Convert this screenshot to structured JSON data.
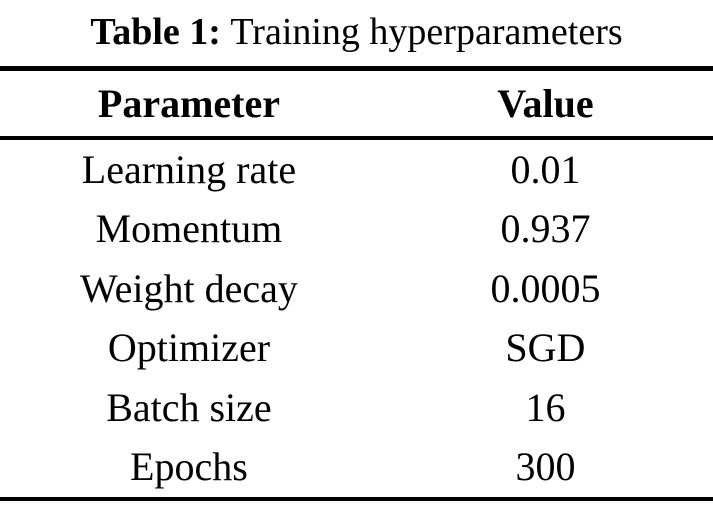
{
  "caption": {
    "label": "Table 1:",
    "text": "Training hyperparameters"
  },
  "table": {
    "columns": [
      "Parameter",
      "Value"
    ],
    "rows": [
      {
        "parameter": "Learning rate",
        "value": "0.01"
      },
      {
        "parameter": "Momentum",
        "value": "0.937"
      },
      {
        "parameter": "Weight decay",
        "value": "0.0005"
      },
      {
        "parameter": "Optimizer",
        "value": "SGD"
      },
      {
        "parameter": "Batch size",
        "value": "16"
      },
      {
        "parameter": "Epochs",
        "value": "300"
      }
    ]
  },
  "colors": {
    "text": "#000000",
    "background": "#ffffff",
    "rule": "#000000"
  }
}
